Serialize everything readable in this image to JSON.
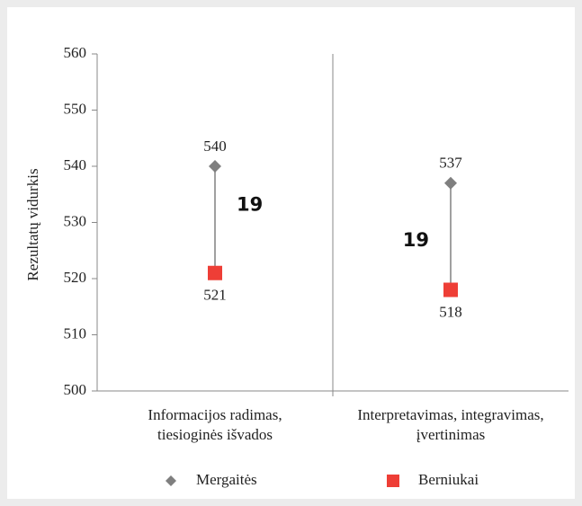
{
  "chart_data": {
    "type": "dumbbell",
    "y_label": "Rezultatų vidurkis",
    "categories": [
      [
        "Informacijos radimas,",
        "tiesioginės išvados"
      ],
      [
        "Interpretavimas, integravimas,",
        "įvertinimas"
      ]
    ],
    "series": [
      {
        "name": "Mergaitės",
        "color": "#7f7f7f",
        "marker": "diamond",
        "values": [
          540,
          537
        ]
      },
      {
        "name": "Berniukai",
        "color": "#ee3e36",
        "marker": "square",
        "values": [
          521,
          518
        ]
      }
    ],
    "differences": [
      19,
      19
    ],
    "ylim": [
      500,
      560
    ],
    "yticks": [
      500,
      510,
      520,
      530,
      540,
      550,
      560
    ]
  }
}
